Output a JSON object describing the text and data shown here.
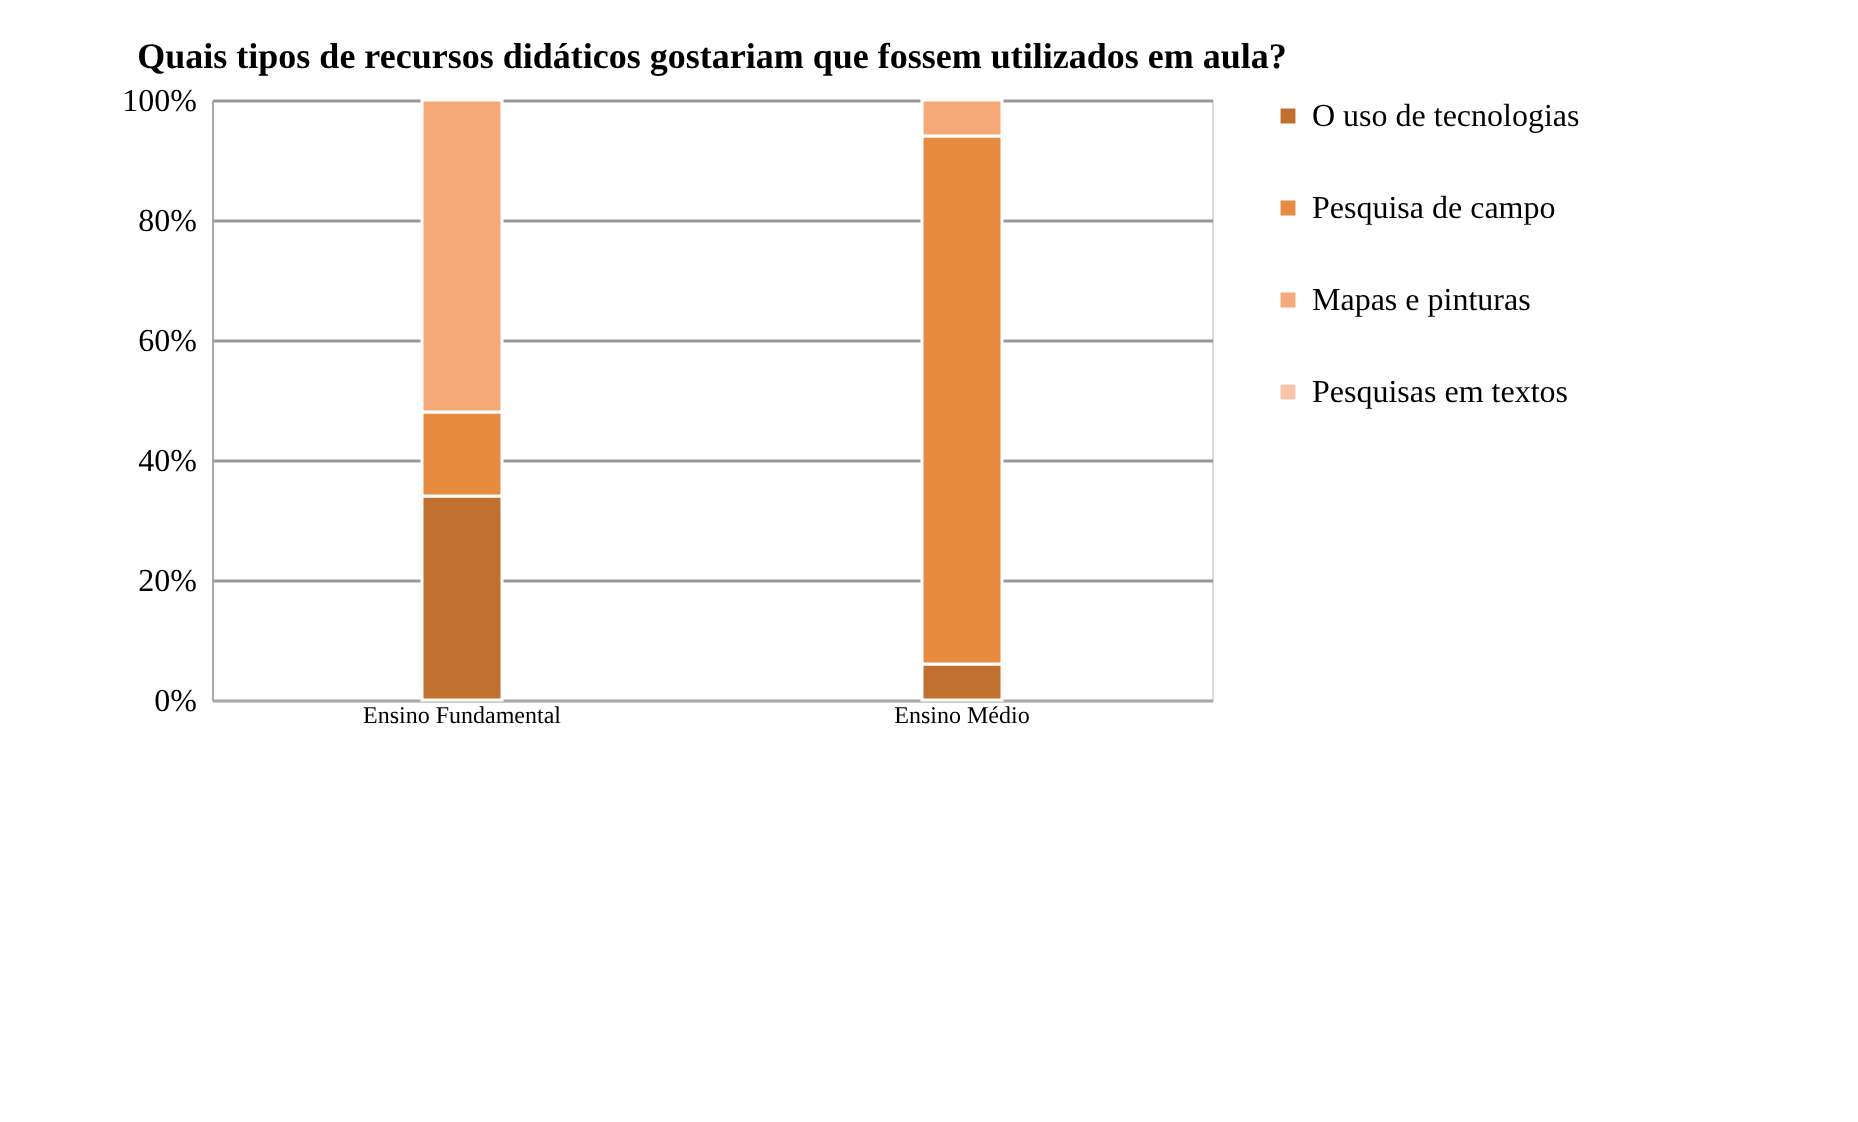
{
  "chart_data": {
    "type": "bar",
    "stacked": true,
    "title": "Quais tipos de recursos didáticos gostariam que fossem utilizados em aula?",
    "categories": [
      "Ensino Fundamental",
      "Ensino Médio"
    ],
    "series": [
      {
        "name": "O uso de tecnologias",
        "color": "#c0702f",
        "values": [
          34,
          6
        ]
      },
      {
        "name": "Pesquisa de campo",
        "color": "#e68b3f",
        "values": [
          14,
          88
        ]
      },
      {
        "name": "Mapas e pinturas",
        "color": "#f5a878",
        "values": [
          52,
          6
        ]
      },
      {
        "name": "Pesquisas em textos",
        "color": "#f8c5a8",
        "values": [
          null,
          null
        ]
      }
    ],
    "ylim": [
      0,
      100
    ],
    "yticks": [
      {
        "value": 0,
        "label": "0%"
      },
      {
        "value": 20,
        "label": "20%"
      },
      {
        "value": 40,
        "label": "40%"
      },
      {
        "value": 60,
        "label": "60%"
      },
      {
        "value": 80,
        "label": "80%"
      },
      {
        "value": 100,
        "label": "100%"
      }
    ],
    "grid": "y",
    "legend": "right"
  }
}
